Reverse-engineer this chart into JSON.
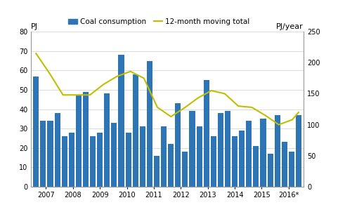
{
  "bar_values": [
    57,
    34,
    34,
    38,
    26,
    28,
    47,
    49,
    26,
    28,
    48,
    33,
    68,
    28,
    58,
    31,
    65,
    16,
    31,
    22,
    43,
    18,
    39,
    31,
    55,
    26,
    38,
    39,
    26,
    29,
    34,
    21,
    35,
    17,
    37,
    23,
    18,
    37
  ],
  "line_x_positions": [
    0,
    1.9,
    3.8,
    5.7,
    7.6,
    9.5,
    11.4,
    13.3,
    15.2,
    17.1,
    19.0,
    20.9,
    22.8,
    24.7,
    26.6,
    28.5,
    30.4,
    32.3,
    34.2,
    36.1,
    37.0
  ],
  "line_values": [
    215,
    183,
    148,
    148,
    148,
    165,
    178,
    186,
    175,
    128,
    113,
    127,
    143,
    155,
    150,
    130,
    128,
    115,
    100,
    108,
    120
  ],
  "bar_color": "#2E75B6",
  "line_color": "#BFBF00",
  "ylabel_left": "PJ",
  "ylabel_right": "PJ/year",
  "ylim_left": [
    0,
    80
  ],
  "ylim_right": [
    0,
    250
  ],
  "yticks_left": [
    0,
    10,
    20,
    30,
    40,
    50,
    60,
    70,
    80
  ],
  "yticks_right": [
    0,
    50,
    100,
    150,
    200,
    250
  ],
  "x_tick_labels": [
    "2007",
    "2008",
    "2009",
    "2010",
    "2011",
    "2012",
    "2013",
    "2014",
    "2015",
    "2016*"
  ],
  "legend_bar_label": "Coal consumption",
  "legend_line_label": "12-month moving total",
  "background_color": "#ffffff",
  "bar_width": 0.8,
  "grid_color": "#cccccc",
  "grid_linewidth": 0.5,
  "tick_fontsize": 7,
  "legend_fontsize": 7.5,
  "label_fontsize": 8
}
